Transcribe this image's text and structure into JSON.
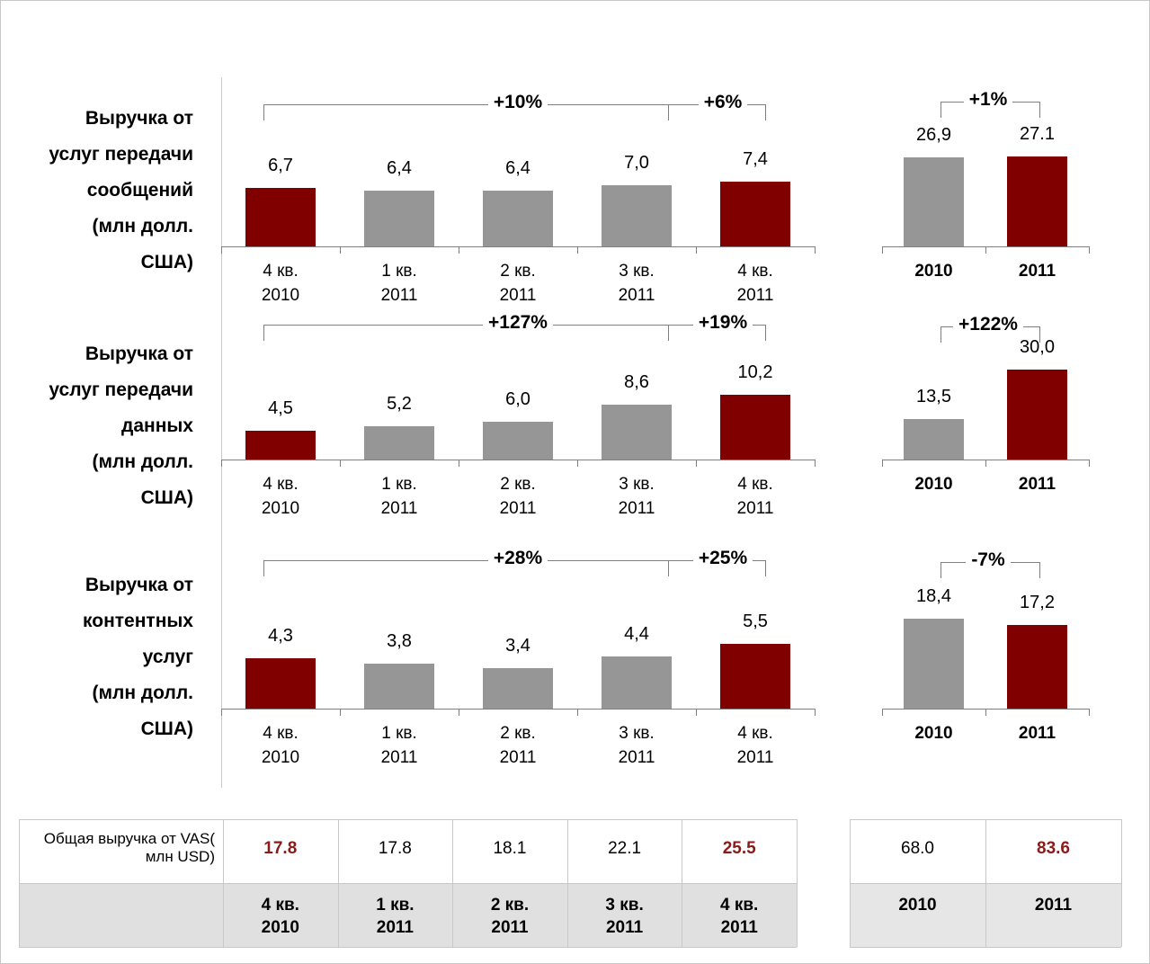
{
  "chart_data": [
    {
      "type": "bar",
      "title": [
        "Выручка от",
        "услуг передачи",
        "сообщений",
        "(млн долл.",
        "США)"
      ],
      "categories": [
        "4 кв. 2010",
        "1 кв. 2011",
        "2 кв. 2011",
        "3 кв. 2011",
        "4 кв. 2011"
      ],
      "values": [
        6.7,
        6.4,
        6.4,
        7.0,
        7.4
      ],
      "value_labels": [
        "6,7",
        "6,4",
        "6,4",
        "7,0",
        "7,4"
      ],
      "colors": [
        "#800000",
        "#969696",
        "#969696",
        "#969696",
        "#800000"
      ],
      "annotations": [
        "+10%",
        "+6%"
      ]
    },
    {
      "type": "bar",
      "categories": [
        "2010",
        "2011"
      ],
      "values": [
        26.9,
        27.1
      ],
      "value_labels": [
        "26,9",
        "27.1"
      ],
      "colors": [
        "#969696",
        "#800000"
      ],
      "annotations": [
        "+1%"
      ]
    },
    {
      "type": "bar",
      "title": [
        "Выручка от",
        "услуг передачи",
        "данных",
        "(млн долл.",
        "США)"
      ],
      "categories": [
        "4 кв. 2010",
        "1 кв. 2011",
        "2 кв. 2011",
        "3 кв. 2011",
        "4 кв. 2011"
      ],
      "values": [
        4.5,
        5.2,
        6.0,
        8.6,
        10.2
      ],
      "value_labels": [
        "4,5",
        "5,2",
        "6,0",
        "8,6",
        "10,2"
      ],
      "colors": [
        "#800000",
        "#969696",
        "#969696",
        "#969696",
        "#800000"
      ],
      "annotations": [
        "+127%",
        "+19%"
      ]
    },
    {
      "type": "bar",
      "categories": [
        "2010",
        "2011"
      ],
      "values": [
        13.5,
        30.0
      ],
      "value_labels": [
        "13,5",
        "30,0"
      ],
      "colors": [
        "#969696",
        "#800000"
      ],
      "annotations": [
        "+122%"
      ]
    },
    {
      "type": "bar",
      "title": [
        "Выручка от",
        "контентных",
        "услуг",
        "(млн долл.",
        "США)"
      ],
      "categories": [
        "4 кв. 2010",
        "1 кв. 2011",
        "2 кв. 2011",
        "3 кв. 2011",
        "4 кв. 2011"
      ],
      "values": [
        4.3,
        3.8,
        3.4,
        4.4,
        5.5
      ],
      "value_labels": [
        "4,3",
        "3,8",
        "3,4",
        "4,4",
        "5,5"
      ],
      "colors": [
        "#800000",
        "#969696",
        "#969696",
        "#969696",
        "#800000"
      ],
      "annotations": [
        "+28%",
        "+25%"
      ]
    },
    {
      "type": "bar",
      "categories": [
        "2010",
        "2011"
      ],
      "values": [
        18.4,
        17.2
      ],
      "value_labels": [
        "18,4",
        "17,2"
      ],
      "colors": [
        "#969696",
        "#800000"
      ],
      "annotations": [
        "-7%"
      ]
    }
  ],
  "table": {
    "row_label": "Общая выручка от VAS( млн USD)",
    "quarterly": {
      "values": [
        "17.8",
        "17.8",
        "18.1",
        "22.1",
        "25.5"
      ],
      "colors": [
        "#8b1a1a",
        "#000000",
        "#000000",
        "#000000",
        "#8b1a1a"
      ]
    },
    "annual": {
      "values": [
        "68.0",
        "83.6"
      ],
      "colors": [
        "#000000",
        "#8b1a1a"
      ]
    }
  }
}
